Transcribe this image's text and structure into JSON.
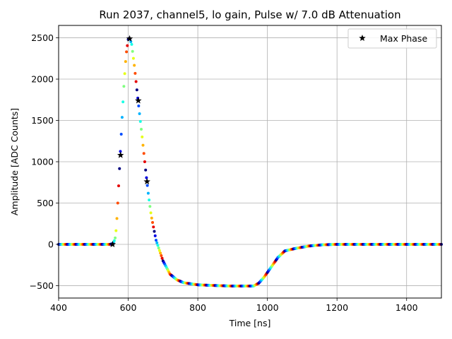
{
  "chart_data": {
    "type": "scatter",
    "title": "Run 2037, channel5, lo gain, Pulse w/ 7.0 dB Attenuation",
    "xlabel": "Time [ns]",
    "ylabel": "Amplitude [ADC Counts]",
    "xlim": [
      400,
      1500
    ],
    "ylim": [
      -650,
      2650
    ],
    "xticks": [
      400,
      600,
      800,
      1000,
      1200,
      1400
    ],
    "yticks": [
      -500,
      0,
      500,
      1000,
      1500,
      2000,
      2500
    ],
    "grid": true,
    "legend": {
      "placement": "top-right",
      "entries": [
        "Max Phase"
      ]
    },
    "colormap": "jet",
    "series": [
      {
        "kind": "waveform-points",
        "color_cycle_ns": 25,
        "x_range": [
          400,
          1500
        ],
        "step_ns": 2.5,
        "profile": [
          [
            400,
            0
          ],
          [
            548,
            0
          ],
          [
            556,
            10
          ],
          [
            562,
            60
          ],
          [
            566,
            200
          ],
          [
            570,
            500
          ],
          [
            576,
            1000
          ],
          [
            582,
            1500
          ],
          [
            588,
            1950
          ],
          [
            594,
            2300
          ],
          [
            600,
            2480
          ],
          [
            604,
            2500
          ],
          [
            610,
            2420
          ],
          [
            618,
            2150
          ],
          [
            628,
            1750
          ],
          [
            640,
            1300
          ],
          [
            650,
            900
          ],
          [
            658,
            600
          ],
          [
            666,
            350
          ],
          [
            680,
            50
          ],
          [
            700,
            -200
          ],
          [
            720,
            -360
          ],
          [
            740,
            -430
          ],
          [
            760,
            -465
          ],
          [
            800,
            -490
          ],
          [
            860,
            -500
          ],
          [
            900,
            -505
          ],
          [
            960,
            -505
          ],
          [
            975,
            -470
          ],
          [
            990,
            -400
          ],
          [
            1010,
            -280
          ],
          [
            1030,
            -160
          ],
          [
            1050,
            -80
          ],
          [
            1080,
            -50
          ],
          [
            1120,
            -20
          ],
          [
            1160,
            -5
          ],
          [
            1200,
            0
          ],
          [
            1500,
            0
          ]
        ]
      },
      {
        "name": "Max Phase",
        "kind": "markers",
        "marker": "star",
        "color": "#000000",
        "points": [
          [
            555,
            0
          ],
          [
            578,
            1080
          ],
          [
            604,
            2490
          ],
          [
            629,
            1740
          ],
          [
            654,
            760
          ]
        ]
      }
    ]
  }
}
